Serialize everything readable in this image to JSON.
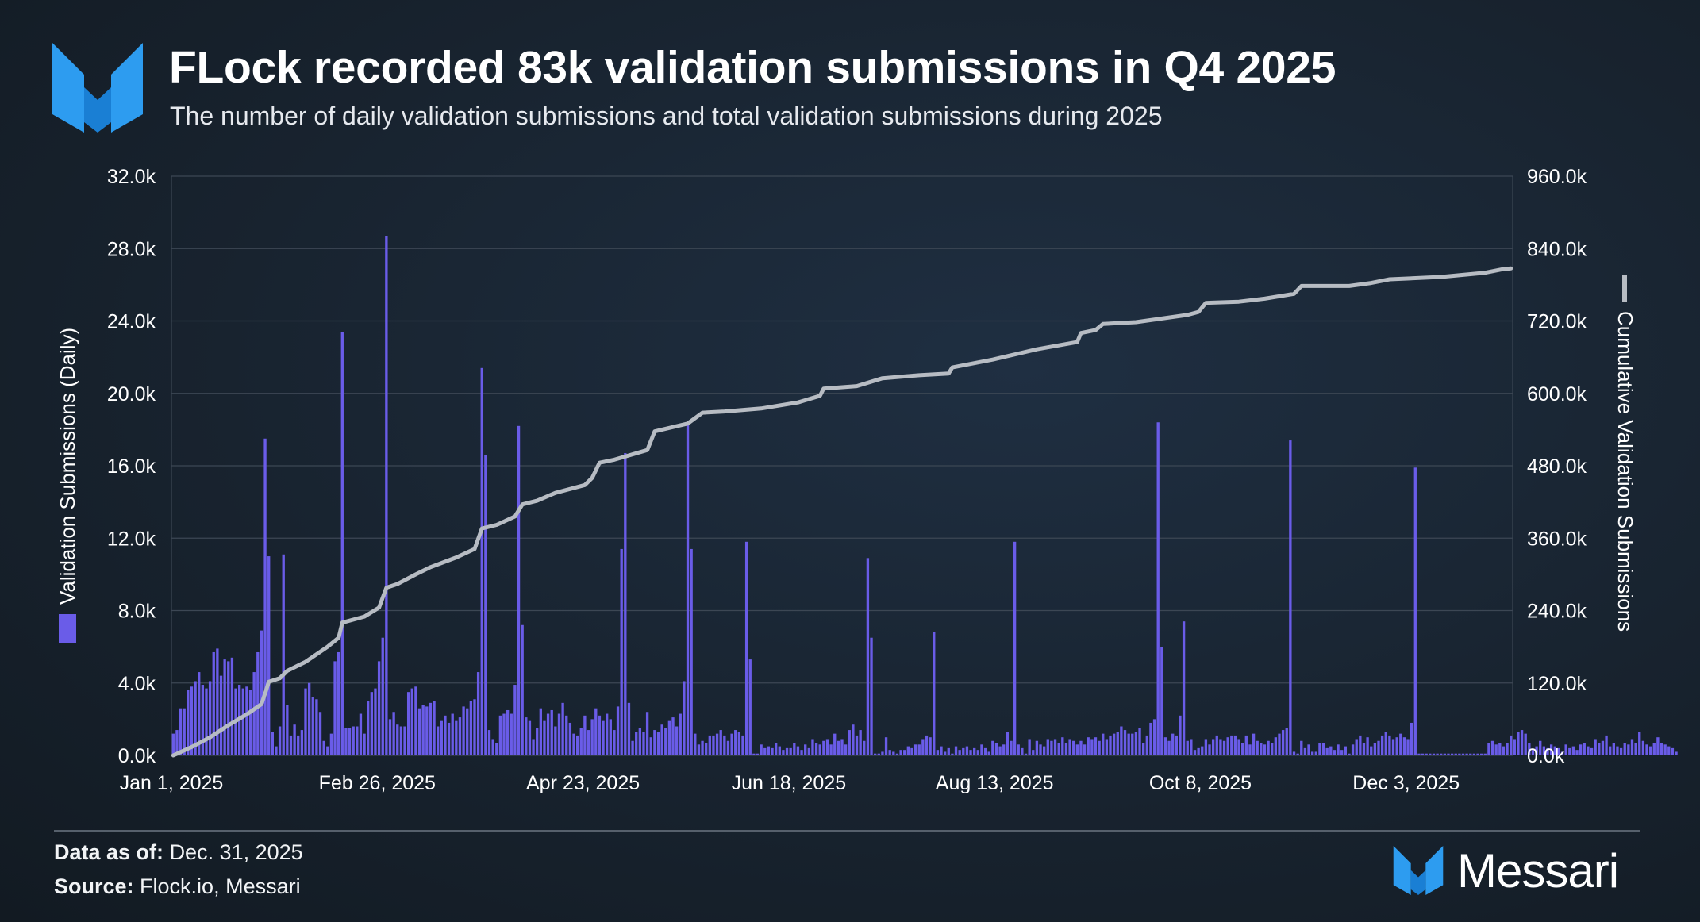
{
  "header": {
    "title": "FLock recorded 83k validation submissions in Q4 2025",
    "subtitle": "The number of daily validation submissions and total validation submissions during 2025",
    "logo_icon": "messari-logo-icon"
  },
  "footer": {
    "asof_label": "Data as of:",
    "asof_value": "Dec. 31, 2025",
    "source_label": "Source:",
    "source_value": "Flock.io, Messari",
    "brand_name": "Messari"
  },
  "colors": {
    "bar": "#6a5ce8",
    "line": "#b7bcc3",
    "grid": "#3c4754",
    "text": "#ffffff",
    "background": "#1a2530"
  },
  "chart_data": {
    "type": "bar+line",
    "xlabel": "",
    "ylabel": "Validation Submissions (Daily)",
    "ylabel_right": "Cumulative Validation Submissions",
    "ylim": [
      0,
      32000
    ],
    "ylim_right": [
      0,
      960000
    ],
    "yticks": [
      "0.0k",
      "4.0k",
      "8.0k",
      "12.0k",
      "16.0k",
      "20.0k",
      "24.0k",
      "28.0k",
      "32.0k"
    ],
    "yticks_right": [
      "0.0k",
      "120.0k",
      "240.0k",
      "360.0k",
      "480.0k",
      "600.0k",
      "720.0k",
      "840.0k",
      "960.0k"
    ],
    "xticks": [
      {
        "label": "Jan 1, 2025",
        "day": 0
      },
      {
        "label": "Feb 26, 2025",
        "day": 56
      },
      {
        "label": "Apr 23, 2025",
        "day": 112
      },
      {
        "label": "Jun 18, 2025",
        "day": 168
      },
      {
        "label": "Aug 13, 2025",
        "day": 224
      },
      {
        "label": "Oct 8, 2025",
        "day": 280
      },
      {
        "label": "Dec 3, 2025",
        "day": 336
      }
    ],
    "x_start": "2025-01-01",
    "x_end": "2025-12-31",
    "grid": true,
    "legend": "axis-side",
    "series": [
      {
        "name": "Validation Submissions (Daily)",
        "type": "bar",
        "axis": "left",
        "values": [
          1200,
          1400,
          2600,
          2600,
          3600,
          3800,
          4100,
          4600,
          3900,
          3700,
          4100,
          5700,
          5900,
          4400,
          5300,
          5200,
          5400,
          3700,
          3900,
          3700,
          3800,
          3600,
          4600,
          5700,
          6900,
          17500,
          11000,
          1300,
          500,
          1600,
          11100,
          2800,
          1100,
          1700,
          1100,
          1400,
          3700,
          4000,
          3200,
          3100,
          2400,
          800,
          500,
          1200,
          5200,
          5700,
          23400,
          1500,
          1500,
          1600,
          1600,
          2300,
          1200,
          3000,
          3500,
          3700,
          5200,
          6500,
          28700,
          2000,
          2400,
          1700,
          1600,
          1600,
          3500,
          3700,
          3800,
          2600,
          2800,
          2700,
          2900,
          3000,
          1600,
          1900,
          2200,
          1800,
          2300,
          1900,
          2100,
          2700,
          2600,
          3000,
          3100,
          4600,
          21400,
          16600,
          1400,
          900,
          700,
          2200,
          2300,
          2500,
          2300,
          3900,
          18200,
          7200,
          2100,
          1900,
          900,
          1500,
          2600,
          1900,
          2300,
          2500,
          1600,
          2300,
          2900,
          2200,
          1800,
          1200,
          1100,
          1500,
          2200,
          1400,
          2000,
          2600,
          2200,
          1900,
          2300,
          2000,
          1400,
          2700,
          11400,
          16700,
          2900,
          800,
          1300,
          1500,
          1300,
          2400,
          1000,
          1400,
          1300,
          1700,
          1500,
          1900,
          2100,
          1600,
          2300,
          4100,
          18400,
          11400,
          1200,
          600,
          800,
          700,
          1100,
          1100,
          1200,
          1400,
          1100,
          800,
          1200,
          1400,
          1300,
          1100,
          11800,
          5300,
          100,
          100,
          600,
          400,
          500,
          400,
          700,
          500,
          300,
          400,
          400,
          700,
          500,
          300,
          600,
          400,
          900,
          700,
          600,
          800,
          900,
          600,
          1200,
          800,
          900,
          600,
          1400,
          1700,
          1100,
          1400,
          800,
          10900,
          6500,
          100,
          100,
          200,
          1000,
          300,
          200,
          100,
          300,
          300,
          500,
          400,
          600,
          600,
          900,
          1100,
          1000,
          6800,
          300,
          500,
          200,
          400,
          100,
          500,
          300,
          400,
          500,
          300,
          400,
          300,
          600,
          400,
          200,
          800,
          700,
          500,
          600,
          1300,
          800,
          11800,
          600,
          400,
          100,
          900,
          300,
          800,
          600,
          500,
          900,
          800,
          900,
          700,
          1000,
          700,
          900,
          800,
          600,
          800,
          600,
          1000,
          900,
          1000,
          800,
          1200,
          900,
          1100,
          1200,
          1300,
          1600,
          1400,
          1200,
          1200,
          1300,
          1500,
          700,
          1100,
          1800,
          2000,
          18400,
          6000,
          1000,
          800,
          1200,
          1100,
          2200,
          7400,
          800,
          900,
          300,
          400,
          500,
          900,
          600,
          900,
          1100,
          900,
          800,
          1000,
          1100,
          1100,
          900,
          700,
          1100,
          600,
          1200,
          800,
          700,
          600,
          800,
          700,
          1000,
          1200,
          1400,
          1500,
          17400,
          200,
          100,
          800,
          400,
          600,
          200,
          200,
          700,
          700,
          400,
          500,
          300,
          600,
          300,
          500,
          100,
          600,
          900,
          1100,
          700,
          1000,
          500,
          700,
          800,
          1100,
          1300,
          1100,
          900,
          1000,
          1200,
          1000,
          900,
          1800,
          15900,
          100,
          100,
          100,
          100,
          100,
          100,
          100,
          100,
          100,
          100,
          100,
          100,
          100,
          100,
          100,
          100,
          100,
          100,
          100,
          700,
          800,
          600,
          700,
          500,
          700,
          1100,
          900,
          1300,
          1400,
          1200,
          700,
          300,
          500,
          800,
          500,
          400,
          600,
          500,
          400,
          200,
          600,
          400,
          500,
          300,
          600,
          700,
          500,
          400,
          900,
          700,
          800,
          1100,
          500,
          700,
          500,
          400,
          700,
          600,
          900,
          700,
          1300,
          800,
          600,
          500,
          700,
          1000,
          700,
          600,
          500,
          400,
          200
        ]
      },
      {
        "name": "Cumulative Validation Submissions",
        "type": "line",
        "axis": "right",
        "points": [
          {
            "day": 0,
            "value": 0
          },
          {
            "day": 5,
            "value": 14000
          },
          {
            "day": 10,
            "value": 30000
          },
          {
            "day": 15,
            "value": 50000
          },
          {
            "day": 20,
            "value": 68000
          },
          {
            "day": 24,
            "value": 85000
          },
          {
            "day": 25,
            "value": 103000
          },
          {
            "day": 26,
            "value": 122000
          },
          {
            "day": 29,
            "value": 128000
          },
          {
            "day": 31,
            "value": 140000
          },
          {
            "day": 36,
            "value": 155000
          },
          {
            "day": 42,
            "value": 180000
          },
          {
            "day": 45,
            "value": 195000
          },
          {
            "day": 46,
            "value": 220000
          },
          {
            "day": 52,
            "value": 230000
          },
          {
            "day": 56,
            "value": 245000
          },
          {
            "day": 58,
            "value": 278000
          },
          {
            "day": 61,
            "value": 284000
          },
          {
            "day": 66,
            "value": 300000
          },
          {
            "day": 70,
            "value": 312000
          },
          {
            "day": 77,
            "value": 328000
          },
          {
            "day": 82,
            "value": 342000
          },
          {
            "day": 84,
            "value": 376000
          },
          {
            "day": 88,
            "value": 382000
          },
          {
            "day": 93,
            "value": 396000
          },
          {
            "day": 95,
            "value": 416000
          },
          {
            "day": 99,
            "value": 422000
          },
          {
            "day": 104,
            "value": 435000
          },
          {
            "day": 112,
            "value": 448000
          },
          {
            "day": 114,
            "value": 460000
          },
          {
            "day": 116,
            "value": 485000
          },
          {
            "day": 120,
            "value": 490000
          },
          {
            "day": 129,
            "value": 506000
          },
          {
            "day": 131,
            "value": 537000
          },
          {
            "day": 140,
            "value": 550000
          },
          {
            "day": 144,
            "value": 568000
          },
          {
            "day": 150,
            "value": 570000
          },
          {
            "day": 160,
            "value": 575000
          },
          {
            "day": 170,
            "value": 585000
          },
          {
            "day": 176,
            "value": 596000
          },
          {
            "day": 177,
            "value": 608000
          },
          {
            "day": 186,
            "value": 612000
          },
          {
            "day": 193,
            "value": 625000
          },
          {
            "day": 203,
            "value": 630000
          },
          {
            "day": 211,
            "value": 633000
          },
          {
            "day": 212,
            "value": 643000
          },
          {
            "day": 223,
            "value": 656000
          },
          {
            "day": 235,
            "value": 673000
          },
          {
            "day": 246,
            "value": 685000
          },
          {
            "day": 247,
            "value": 700000
          },
          {
            "day": 251,
            "value": 705000
          },
          {
            "day": 253,
            "value": 715000
          },
          {
            "day": 262,
            "value": 718000
          },
          {
            "day": 276,
            "value": 730000
          },
          {
            "day": 279,
            "value": 735000
          },
          {
            "day": 281,
            "value": 750000
          },
          {
            "day": 290,
            "value": 752000
          },
          {
            "day": 297,
            "value": 757000
          },
          {
            "day": 305,
            "value": 765000
          },
          {
            "day": 307,
            "value": 778000
          },
          {
            "day": 320,
            "value": 778000
          },
          {
            "day": 326,
            "value": 783000
          },
          {
            "day": 331,
            "value": 789000
          },
          {
            "day": 345,
            "value": 793000
          },
          {
            "day": 357,
            "value": 800000
          },
          {
            "day": 362,
            "value": 806000
          },
          {
            "day": 364,
            "value": 807000
          }
        ]
      }
    ]
  }
}
